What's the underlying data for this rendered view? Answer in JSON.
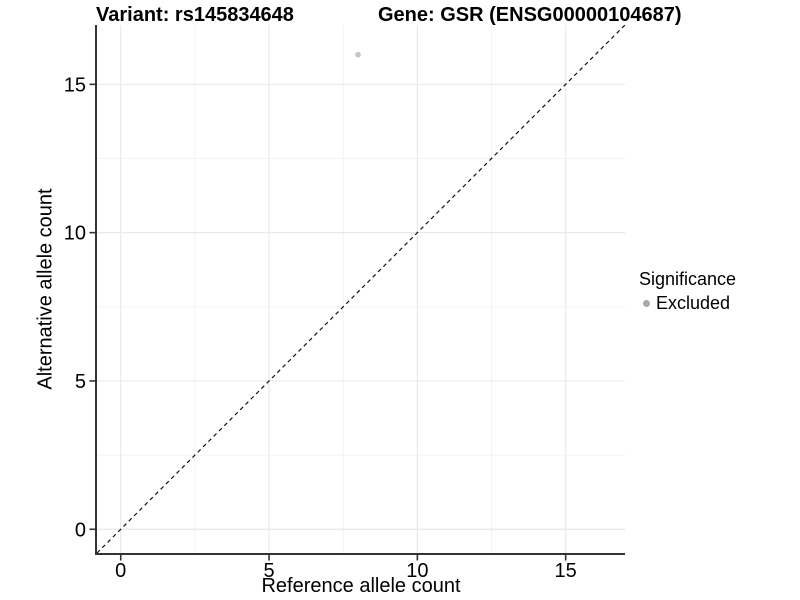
{
  "legend": {
    "title": "Significance",
    "items": [
      {
        "label": "Excluded",
        "marker_color": "#a9a9a9"
      }
    ]
  },
  "chart_data": {
    "type": "scatter",
    "title_left": "Variant: rs145834648",
    "title_right": "Gene: GSR (ENSG00000104687)",
    "xlabel": "Reference allele count",
    "ylabel": "Alternative allele count",
    "xlim": [
      -0.8,
      17
    ],
    "ylim": [
      -0.8,
      17
    ],
    "xticks": [
      0,
      5,
      10,
      15
    ],
    "yticks": [
      0,
      5,
      10,
      15
    ],
    "x_minor_gridlines": [
      2.5,
      7.5,
      12.5
    ],
    "y_minor_gridlines": [
      2.5,
      7.5,
      12.5
    ],
    "grid": "major+minor",
    "legend_position": "right",
    "series": [
      {
        "name": "Excluded",
        "marker_color": "#c4c4c4",
        "points": [
          {
            "x": 8,
            "y": 16
          }
        ]
      }
    ],
    "reference_line": {
      "type": "identity y=x",
      "style": "dashed",
      "color": "#111111"
    },
    "style": {
      "grid_major_color": "#e9e9e9",
      "grid_minor_color": "#f3f3f3",
      "axis_line_color": "#333333",
      "tick_color": "#333333",
      "text_color": "#000000"
    }
  }
}
